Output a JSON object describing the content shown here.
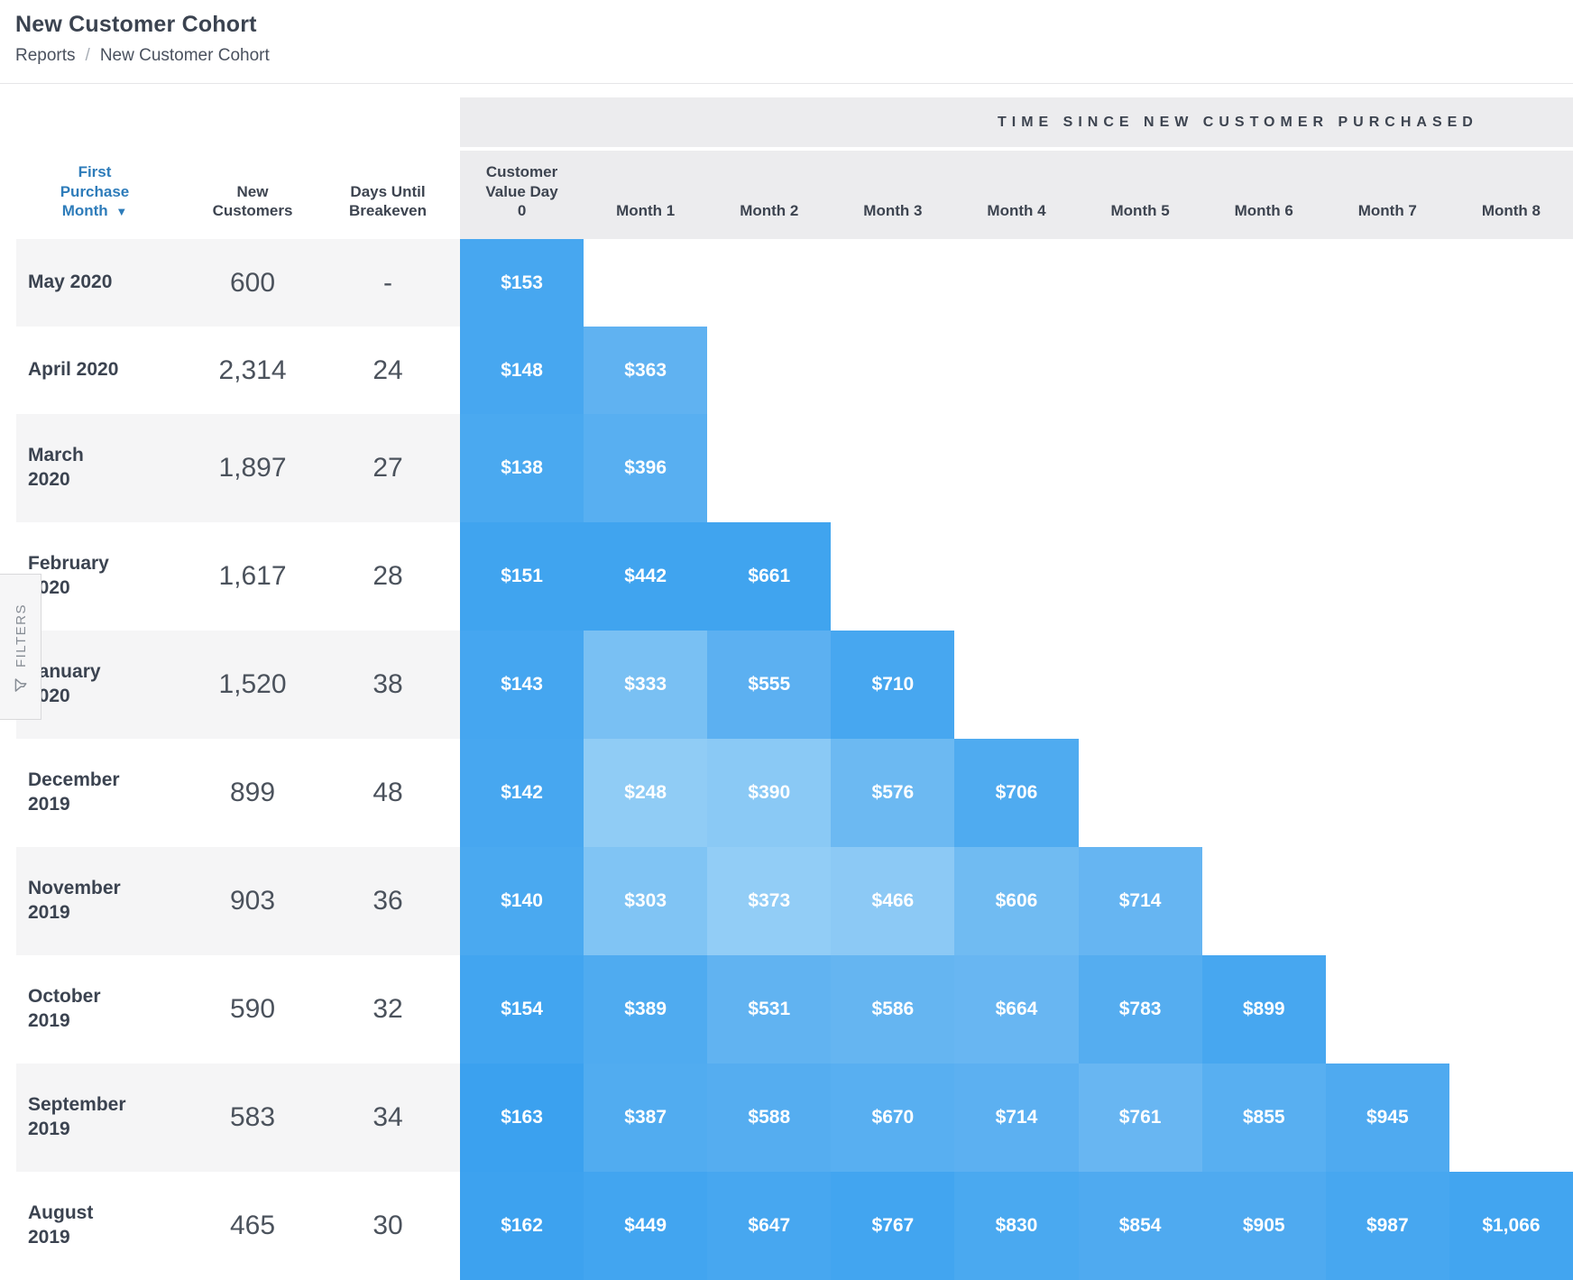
{
  "page": {
    "title": "New Customer Cohort",
    "breadcrumb": {
      "reports": "Reports",
      "separator": "/",
      "current": "New Customer Cohort"
    }
  },
  "band": {
    "title": "TIME SINCE NEW CUSTOMER PURCHASED"
  },
  "filters_tab": {
    "label": "FILTERS",
    "icon": "funnel-icon"
  },
  "table": {
    "left_columns": [
      {
        "label_lines": [
          "First",
          "Purchase",
          "Month"
        ],
        "sortable": true,
        "sort_indicator": "▼"
      },
      {
        "label_lines": [
          "New",
          "Customers"
        ]
      },
      {
        "label_lines": [
          "Days Until",
          "Breakeven"
        ]
      }
    ],
    "value_columns": [
      {
        "label_lines": [
          "Customer",
          "Value Day",
          "0"
        ]
      },
      {
        "label_lines": [
          "Month 1"
        ]
      },
      {
        "label_lines": [
          "Month 2"
        ]
      },
      {
        "label_lines": [
          "Month 3"
        ]
      },
      {
        "label_lines": [
          "Month 4"
        ]
      },
      {
        "label_lines": [
          "Month 5"
        ]
      },
      {
        "label_lines": [
          "Month 6"
        ]
      },
      {
        "label_lines": [
          "Month 7"
        ]
      },
      {
        "label_lines": [
          "Month 8"
        ]
      }
    ],
    "rows": [
      {
        "month_lines": [
          "May 2020"
        ],
        "new_customers": "600",
        "days_until_breakeven": "-",
        "cells": [
          {
            "value": "$153",
            "color": "#47a7f0"
          }
        ]
      },
      {
        "month_lines": [
          "April 2020"
        ],
        "new_customers": "2,314",
        "days_until_breakeven": "24",
        "cells": [
          {
            "value": "$148",
            "color": "#47a7f0"
          },
          {
            "value": "$363",
            "color": "#60b2f1"
          }
        ]
      },
      {
        "month_lines": [
          "March",
          "2020"
        ],
        "new_customers": "1,897",
        "days_until_breakeven": "27",
        "cells": [
          {
            "value": "$138",
            "color": "#4aa9f0"
          },
          {
            "value": "$396",
            "color": "#58aff1"
          }
        ]
      },
      {
        "month_lines": [
          "February",
          "2020"
        ],
        "new_customers": "1,617",
        "days_until_breakeven": "28",
        "cells": [
          {
            "value": "$151",
            "color": "#40a4ef"
          },
          {
            "value": "$442",
            "color": "#40a4ef"
          },
          {
            "value": "$661",
            "color": "#40a4ef"
          }
        ]
      },
      {
        "month_lines": [
          "January",
          "2020"
        ],
        "new_customers": "1,520",
        "days_until_breakeven": "38",
        "cells": [
          {
            "value": "$143",
            "color": "#45a6f0"
          },
          {
            "value": "$333",
            "color": "#79c0f3"
          },
          {
            "value": "$555",
            "color": "#5cb0f1"
          },
          {
            "value": "$710",
            "color": "#47a7f0"
          }
        ]
      },
      {
        "month_lines": [
          "December",
          "2019"
        ],
        "new_customers": "899",
        "days_until_breakeven": "48",
        "cells": [
          {
            "value": "$142",
            "color": "#47a7f0"
          },
          {
            "value": "$248",
            "color": "#90ccf5"
          },
          {
            "value": "$390",
            "color": "#8ac9f5"
          },
          {
            "value": "$576",
            "color": "#6cb9f2"
          },
          {
            "value": "$706",
            "color": "#4fabf0"
          }
        ]
      },
      {
        "month_lines": [
          "November",
          "2019"
        ],
        "new_customers": "903",
        "days_until_breakeven": "36",
        "cells": [
          {
            "value": "$140",
            "color": "#4aa9f0"
          },
          {
            "value": "$303",
            "color": "#80c4f4"
          },
          {
            "value": "$373",
            "color": "#92cdf6"
          },
          {
            "value": "$466",
            "color": "#8cc9f5"
          },
          {
            "value": "$606",
            "color": "#70bbf2"
          },
          {
            "value": "$714",
            "color": "#66b5f2"
          }
        ]
      },
      {
        "month_lines": [
          "October",
          "2019"
        ],
        "new_customers": "590",
        "days_until_breakeven": "32",
        "cells": [
          {
            "value": "$154",
            "color": "#42a5f0"
          },
          {
            "value": "$389",
            "color": "#4fabf0"
          },
          {
            "value": "$531",
            "color": "#61b3f1"
          },
          {
            "value": "$586",
            "color": "#65b5f1"
          },
          {
            "value": "$664",
            "color": "#68b6f2"
          },
          {
            "value": "$783",
            "color": "#55adf0"
          },
          {
            "value": "$899",
            "color": "#47a7f0"
          }
        ]
      },
      {
        "month_lines": [
          "September",
          "2019"
        ],
        "new_customers": "583",
        "days_until_breakeven": "34",
        "cells": [
          {
            "value": "$163",
            "color": "#3ba1ef"
          },
          {
            "value": "$387",
            "color": "#51acf0"
          },
          {
            "value": "$588",
            "color": "#55adf0"
          },
          {
            "value": "$670",
            "color": "#58aff1"
          },
          {
            "value": "$714",
            "color": "#5cb0f1"
          },
          {
            "value": "$761",
            "color": "#68b6f2"
          },
          {
            "value": "$855",
            "color": "#58aff1"
          },
          {
            "value": "$945",
            "color": "#4faaf0"
          }
        ]
      },
      {
        "month_lines": [
          "August",
          "2019"
        ],
        "new_customers": "465",
        "days_until_breakeven": "30",
        "cells": [
          {
            "value": "$162",
            "color": "#3da2ef"
          },
          {
            "value": "$449",
            "color": "#42a5f0"
          },
          {
            "value": "$647",
            "color": "#47a7f0"
          },
          {
            "value": "$767",
            "color": "#42a5f0"
          },
          {
            "value": "$830",
            "color": "#4aa9f0"
          },
          {
            "value": "$854",
            "color": "#4faaf0"
          },
          {
            "value": "$905",
            "color": "#4faaf0"
          },
          {
            "value": "$987",
            "color": "#47a7f0"
          },
          {
            "value": "$1,066",
            "color": "#42a5f0"
          }
        ]
      }
    ]
  },
  "chart_data": {
    "type": "heatmap",
    "title": "New Customer Cohort",
    "group_header": "TIME SINCE NEW CUSTOMER PURCHASED",
    "row_label": "First Purchase Month",
    "columns": [
      "Customer Value Day 0",
      "Month 1",
      "Month 2",
      "Month 3",
      "Month 4",
      "Month 5",
      "Month 6",
      "Month 7",
      "Month 8"
    ],
    "rows": [
      "May 2020",
      "April 2020",
      "March 2020",
      "February 2020",
      "January 2020",
      "December 2019",
      "November 2019",
      "October 2019",
      "September 2019",
      "August 2019"
    ],
    "new_customers": [
      600,
      2314,
      1897,
      1617,
      1520,
      899,
      903,
      590,
      583,
      465
    ],
    "days_until_breakeven": [
      null,
      24,
      27,
      28,
      38,
      48,
      36,
      32,
      34,
      30
    ],
    "values": [
      [
        153,
        null,
        null,
        null,
        null,
        null,
        null,
        null,
        null
      ],
      [
        148,
        363,
        null,
        null,
        null,
        null,
        null,
        null,
        null
      ],
      [
        138,
        396,
        null,
        null,
        null,
        null,
        null,
        null,
        null
      ],
      [
        151,
        442,
        661,
        null,
        null,
        null,
        null,
        null,
        null
      ],
      [
        143,
        333,
        555,
        710,
        null,
        null,
        null,
        null,
        null
      ],
      [
        142,
        248,
        390,
        576,
        706,
        null,
        null,
        null,
        null
      ],
      [
        140,
        303,
        373,
        466,
        606,
        714,
        null,
        null,
        null
      ],
      [
        154,
        389,
        531,
        586,
        664,
        783,
        899,
        null,
        null
      ],
      [
        163,
        387,
        588,
        670,
        714,
        761,
        855,
        945,
        null
      ],
      [
        162,
        449,
        647,
        767,
        830,
        854,
        905,
        987,
        1066
      ]
    ],
    "value_unit": "$",
    "palette": {
      "low": "#92cdf6",
      "high": "#3ba1ef"
    }
  }
}
